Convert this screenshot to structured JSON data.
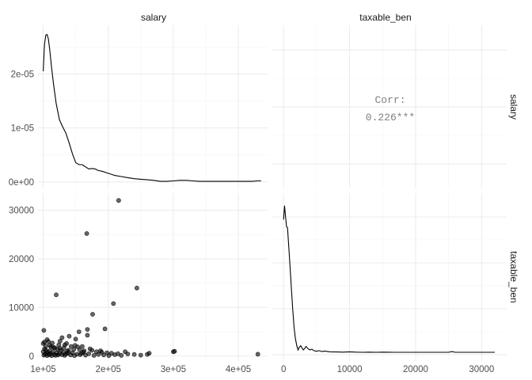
{
  "chart_data": {
    "type": "pairs",
    "variables": [
      "salary",
      "taxable_ben"
    ],
    "column_strips": [
      "salary",
      "taxable_ben"
    ],
    "row_strips": [
      "salary",
      "taxable_ben"
    ],
    "grid": true,
    "panels": [
      {
        "name": "salary-density",
        "type": "line",
        "row": 0,
        "col": 0,
        "xlim": [
          92000,
          445000
        ],
        "ylim": [
          -1.2e-06,
          2.9e-05
        ],
        "y_ticks": [
          0,
          1e-05,
          2e-05
        ],
        "y_tick_labels": [
          "0e+00",
          "1e-05",
          "2e-05"
        ],
        "x": [
          100000,
          102000,
          104000,
          106000,
          108000,
          110000,
          113000,
          116000,
          120000,
          125000,
          130000,
          135000,
          140000,
          145000,
          150000,
          155000,
          160000,
          165000,
          170000,
          175000,
          180000,
          185000,
          190000,
          200000,
          210000,
          220000,
          230000,
          240000,
          250000,
          260000,
          270000,
          280000,
          290000,
          300000,
          310000,
          320000,
          330000,
          340000,
          360000,
          380000,
          400000,
          420000,
          430000,
          435000
        ],
        "y": [
          2.05e-05,
          2.55e-05,
          2.72e-05,
          2.73e-05,
          2.65e-05,
          2.45e-05,
          2.1e-05,
          1.8e-05,
          1.45e-05,
          1.15e-05,
          1.02e-05,
          9e-06,
          7.2e-06,
          5.2e-06,
          3.6e-06,
          3.2e-06,
          3.2e-06,
          2.8e-06,
          2.4e-06,
          2.5e-06,
          2.4e-06,
          2.1e-06,
          2e-06,
          1.6e-06,
          1.2e-06,
          1e-06,
          8e-07,
          6e-07,
          5e-07,
          4e-07,
          3e-07,
          1e-07,
          1e-07,
          2e-07,
          3e-07,
          3e-07,
          2e-07,
          1e-07,
          1e-07,
          1e-07,
          1e-07,
          1e-07,
          2e-07,
          2e-07
        ]
      },
      {
        "name": "correlation",
        "type": "text",
        "row": 0,
        "col": 1,
        "label": "Corr:",
        "value": "0.226***"
      },
      {
        "name": "scatter",
        "type": "scatter",
        "row": 1,
        "col": 0,
        "xlim": [
          92000,
          445000
        ],
        "ylim": [
          -1000,
          33500
        ],
        "x_ticks": [
          100000,
          200000,
          300000,
          400000
        ],
        "x_tick_labels": [
          "1e+05",
          "2e+05",
          "3e+05",
          "4e+05"
        ],
        "y_ticks": [
          0,
          10000,
          20000,
          30000
        ],
        "y_tick_labels": [
          "0",
          "10000",
          "20000",
          "30000"
        ],
        "points": [
          [
            216000,
            32000
          ],
          [
            167000,
            25200
          ],
          [
            244000,
            14000
          ],
          [
            120000,
            12600
          ],
          [
            208000,
            10800
          ],
          [
            176000,
            8600
          ],
          [
            101000,
            5300
          ],
          [
            168000,
            5500
          ],
          [
            155000,
            5000
          ],
          [
            195000,
            5600
          ],
          [
            140000,
            4100
          ],
          [
            106000,
            3400
          ],
          [
            129000,
            3800
          ],
          [
            150000,
            3500
          ],
          [
            168000,
            4300
          ],
          [
            114000,
            2700
          ],
          [
            133000,
            2300
          ],
          [
            104000,
            2100
          ],
          [
            118000,
            1700
          ],
          [
            124000,
            2300
          ],
          [
            160000,
            2000
          ],
          [
            102000,
            1500
          ],
          [
            147000,
            1400
          ],
          [
            110000,
            1100
          ],
          [
            137000,
            1000
          ],
          [
            175000,
            1200
          ],
          [
            182000,
            900
          ],
          [
            190000,
            800
          ],
          [
            198000,
            700
          ],
          [
            205000,
            600
          ],
          [
            215000,
            500
          ],
          [
            230000,
            450
          ],
          [
            250000,
            200
          ],
          [
            260000,
            350
          ],
          [
            263000,
            600
          ],
          [
            300000,
            900
          ],
          [
            302000,
            1000
          ],
          [
            430000,
            400
          ],
          [
            101000,
            200
          ],
          [
            103000,
            400
          ],
          [
            105000,
            600
          ],
          [
            107000,
            800
          ],
          [
            109000,
            300
          ],
          [
            111000,
            500
          ],
          [
            113000,
            100
          ],
          [
            115000,
            900
          ],
          [
            117000,
            350
          ],
          [
            119000,
            150
          ],
          [
            121000,
            700
          ],
          [
            123000,
            250
          ],
          [
            125000,
            500
          ],
          [
            127000,
            1200
          ],
          [
            129000,
            300
          ],
          [
            131000,
            800
          ],
          [
            133000,
            150
          ],
          [
            135000,
            450
          ],
          [
            138000,
            600
          ],
          [
            142000,
            250
          ],
          [
            145000,
            700
          ],
          [
            148000,
            100
          ],
          [
            152000,
            400
          ],
          [
            157000,
            300
          ],
          [
            162000,
            800
          ],
          [
            165000,
            200
          ],
          [
            170000,
            500
          ],
          [
            178000,
            150
          ],
          [
            185000,
            350
          ],
          [
            193000,
            250
          ],
          [
            201000,
            100
          ],
          [
            210000,
            300
          ],
          [
            220000,
            150
          ],
          [
            240000,
            350
          ],
          [
            100000,
            2600
          ],
          [
            102000,
            2900
          ],
          [
            108000,
            3000
          ],
          [
            112000,
            1900
          ],
          [
            116000,
            1800
          ],
          [
            122000,
            1400
          ],
          [
            126000,
            1600
          ],
          [
            132000,
            1700
          ],
          [
            136000,
            2600
          ],
          [
            143000,
            2000
          ],
          [
            149000,
            2200
          ],
          [
            156000,
            1300
          ],
          [
            163000,
            1100
          ],
          [
            100000,
            900
          ],
          [
            104000,
            1300
          ],
          [
            106000,
            100
          ],
          [
            110000,
            2200
          ],
          [
            126000,
            3100
          ],
          [
            139000,
            1200
          ],
          [
            153000,
            1900
          ],
          [
            159000,
            600
          ],
          [
            172000,
            1500
          ],
          [
            188000,
            1100
          ],
          [
            226000,
            900
          ]
        ]
      },
      {
        "name": "taxable-ben-density",
        "type": "line",
        "row": 1,
        "col": 1,
        "xlim": [
          -1700,
          33800
        ],
        "x_ticks": [
          0,
          10000,
          20000,
          30000
        ],
        "x_tick_labels": [
          "0",
          "10000",
          "20000",
          "30000"
        ],
        "ylim": [
          -6e-05,
          0.00115
        ],
        "x": [
          0,
          150,
          300,
          450,
          600,
          800,
          1000,
          1200,
          1400,
          1600,
          1800,
          2000,
          2200,
          2400,
          2600,
          2800,
          3000,
          3200,
          3400,
          3600,
          3800,
          4000,
          4300,
          4600,
          5000,
          5400,
          5800,
          6200,
          7000,
          8000,
          9000,
          10000,
          11000,
          12000,
          13000,
          14000,
          15000,
          17000,
          19000,
          21000,
          23000,
          25000,
          25500,
          26000,
          28000,
          30000,
          32000
        ],
        "y": [
          0.00096,
          0.00106,
          0.00098,
          0.00091,
          0.0009,
          0.00076,
          0.00061,
          0.00045,
          0.00031,
          0.00018,
          0.0001,
          5e-05,
          2e-05,
          4e-05,
          5e-05,
          3.5e-05,
          2e-05,
          3e-05,
          4.5e-05,
          3.5e-05,
          2.5e-05,
          2e-05,
          2.5e-05,
          1.5e-05,
          1e-05,
          1.5e-05,
          8e-06,
          1.2e-05,
          6e-06,
          5e-06,
          4e-06,
          6e-06,
          4e-06,
          3e-06,
          4e-06,
          3e-06,
          4e-06,
          3e-06,
          3e-06,
          3e-06,
          3e-06,
          3e-06,
          8e-06,
          3e-06,
          3e-06,
          3e-06,
          3e-06
        ]
      }
    ]
  }
}
